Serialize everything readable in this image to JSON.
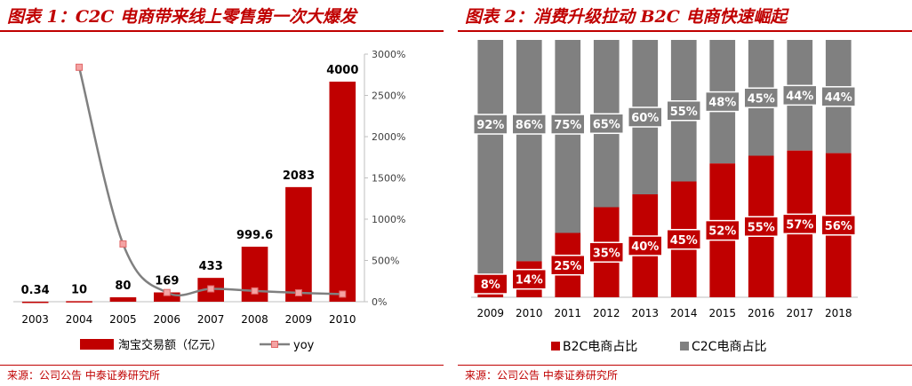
{
  "panels": [
    {
      "title": "图表 1：C2C 电商带来线上零售第一次大爆发",
      "source": "来源：公司公告 中泰证券研究所"
    },
    {
      "title": "图表 2：消费升级拉动 B2C 电商快速崛起",
      "source": "来源：公司公告 中泰证券研究所"
    }
  ],
  "chart_data": [
    {
      "type": "bar",
      "categories": [
        "2003",
        "2004",
        "2005",
        "2006",
        "2007",
        "2008",
        "2009",
        "2010"
      ],
      "series": [
        {
          "name": "淘宝交易额（亿元）",
          "type": "bar",
          "axis": "left",
          "values": [
            0.34,
            10,
            80,
            169,
            433,
            999.6,
            2083,
            4000
          ],
          "labels": [
            "0.34",
            "10",
            "80",
            "169",
            "433",
            "999.6",
            "2083",
            "4000"
          ],
          "color": "#c00000"
        },
        {
          "name": "yoy",
          "type": "line",
          "axis": "right",
          "values": [
            null,
            2841,
            700,
            111,
            156,
            131,
            108,
            92
          ],
          "color": "#808080",
          "marker_color": "#f4a3a3"
        }
      ],
      "y_right_ticks": [
        "0%",
        "500%",
        "1000%",
        "1500%",
        "2000%",
        "2500%",
        "3000%"
      ],
      "y_right_lim": [
        0,
        3000
      ],
      "legend_position": "bottom"
    },
    {
      "type": "bar",
      "stacked": true,
      "percent": true,
      "categories": [
        "2009",
        "2010",
        "2011",
        "2012",
        "2013",
        "2014",
        "2015",
        "2016",
        "2017",
        "2018"
      ],
      "series": [
        {
          "name": "B2C电商占比",
          "values": [
            8,
            14,
            25,
            35,
            40,
            45,
            52,
            55,
            57,
            56
          ],
          "labels": [
            "8%",
            "14%",
            "25%",
            "35%",
            "40%",
            "45%",
            "52%",
            "55%",
            "57%",
            "56%"
          ],
          "color": "#c00000"
        },
        {
          "name": "C2C电商占比",
          "values": [
            92,
            86,
            75,
            65,
            60,
            55,
            48,
            45,
            44,
            44
          ],
          "labels": [
            "92%",
            "86%",
            "75%",
            "65%",
            "60%",
            "55%",
            "48%",
            "45%",
            "44%",
            "44%"
          ],
          "color": "#808080"
        }
      ],
      "legend_position": "bottom"
    }
  ]
}
